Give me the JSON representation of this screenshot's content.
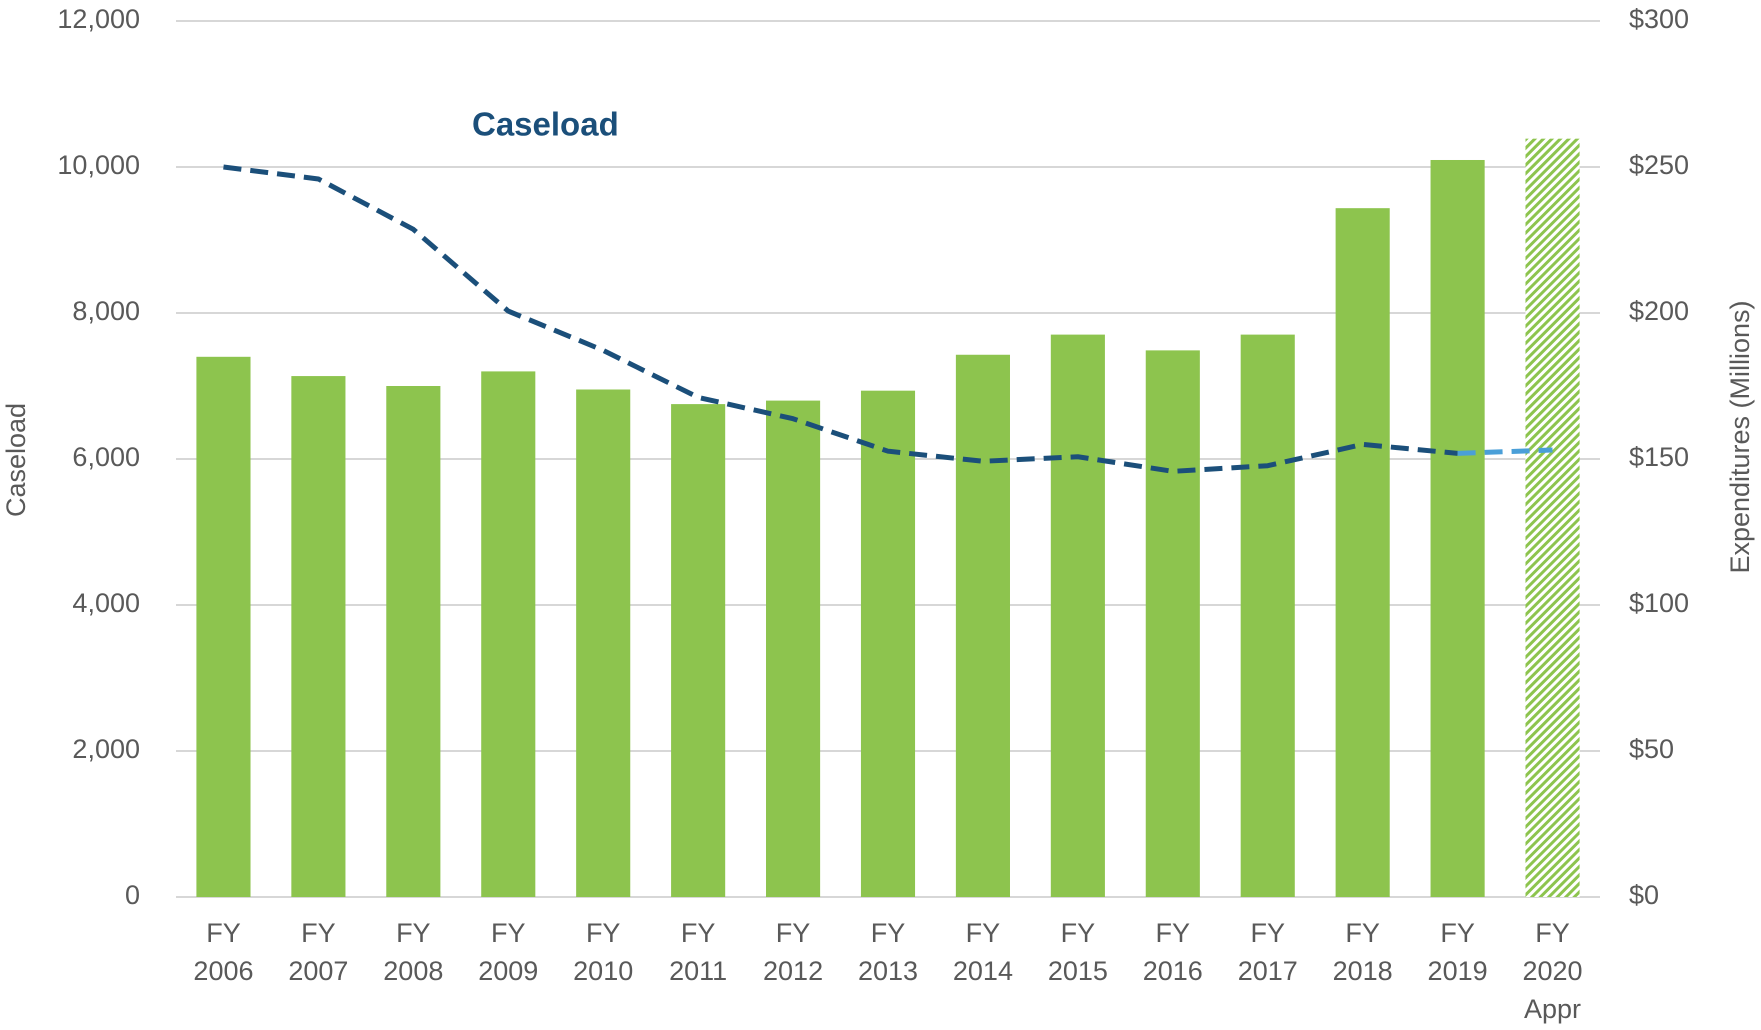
{
  "chart_data": {
    "type": "bar_line",
    "annotation": "Caseload",
    "y_label": "Caseload",
    "y2_label": "Expenditures (Millions)",
    "categories": [
      "FY\n2006",
      "FY\n2007",
      "FY\n2008",
      "FY\n2009",
      "FY\n2010",
      "FY\n2011",
      "FY\n2012",
      "FY\n2013",
      "FY\n2014",
      "FY\n2015",
      "FY\n2016",
      "FY\n2017",
      "FY\n2018",
      "FY\n2019",
      "FY\n2020\nAppr"
    ],
    "series": [
      {
        "type": "bar",
        "axis": "y2",
        "color": "#8dc44e",
        "values": [
          185,
          178.4,
          175,
          180,
          173.8,
          168.8,
          170,
          173.4,
          185.7,
          192.6,
          187.2,
          192.6,
          235.9,
          252.4,
          259.7
        ],
        "hatched": [
          false,
          false,
          false,
          false,
          false,
          false,
          false,
          false,
          false,
          false,
          false,
          false,
          false,
          false,
          true
        ]
      },
      {
        "name": "Caseload",
        "type": "line",
        "axis": "y",
        "color": "#1b4f7a",
        "dashed": true,
        "values": [
          10000,
          9836,
          9146,
          8026,
          7488,
          6844,
          6552,
          6107,
          5969,
          6031,
          5831,
          5908,
          6200,
          6077,
          null
        ]
      },
      {
        "type": "line",
        "axis": "y",
        "color": "#4a9fd8",
        "dashed": true,
        "values": [
          null,
          null,
          null,
          null,
          null,
          null,
          null,
          null,
          null,
          null,
          null,
          null,
          null,
          6077,
          6123
        ]
      }
    ],
    "ylim": [
      0,
      12000
    ],
    "yticks": [
      0,
      {
        "value": 2000,
        "label": "2,000"
      },
      {
        "value": 4000,
        "label": "4,000"
      },
      {
        "value": 6000,
        "label": "6,000"
      },
      {
        "value": 8000,
        "label": "8,000"
      },
      {
        "value": 10000,
        "label": "10,000"
      },
      {
        "value": 12000,
        "label": "12,000"
      }
    ],
    "y2lim": [
      0,
      300
    ],
    "y2ticks": [
      {
        "value": 0,
        "label": "$0"
      },
      {
        "value": 50,
        "label": "$50"
      },
      {
        "value": 100,
        "label": "$100"
      },
      {
        "value": 150,
        "label": "$150"
      },
      {
        "value": 200,
        "label": "$200"
      },
      {
        "value": 250,
        "label": "$250"
      },
      {
        "value": 300,
        "label": "$300"
      }
    ],
    "grid": true
  }
}
